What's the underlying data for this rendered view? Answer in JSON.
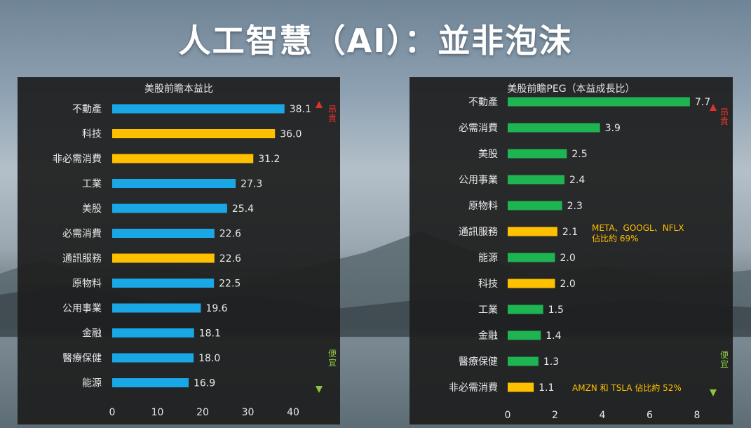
{
  "title": "人工智慧（AI）：並非泡沫",
  "colors": {
    "blue": "#1aa7e6",
    "gold": "#ffc000",
    "green": "#1db451",
    "arrow_top": "#e0322c",
    "arrow_bottom": "#8cc63f"
  },
  "chart_data": [
    {
      "type": "bar",
      "orientation": "horizontal",
      "title": "美股前瞻本益比",
      "categories": [
        "不動產",
        "科技",
        "非必需消費",
        "工業",
        "美股",
        "必需消費",
        "通訊服務",
        "原物料",
        "公用事業",
        "金融",
        "醫療保健",
        "能源"
      ],
      "values": [
        38.1,
        36.0,
        31.2,
        27.3,
        25.4,
        22.6,
        22.6,
        22.5,
        19.6,
        18.1,
        18.0,
        16.9
      ],
      "value_labels": [
        "38.1",
        "36.0",
        "31.2",
        "27.3",
        "25.4",
        "22.6",
        "22.6",
        "22.5",
        "19.6",
        "18.1",
        "18.0",
        "16.9"
      ],
      "highlight": [
        false,
        true,
        true,
        false,
        false,
        false,
        true,
        false,
        false,
        false,
        false,
        false
      ],
      "xlim": [
        0,
        40
      ],
      "xticks": [
        "0",
        "10",
        "20",
        "30",
        "40"
      ],
      "grid": false,
      "arrow_labels": {
        "top": "昂貴",
        "bottom": "便宜"
      }
    },
    {
      "type": "bar",
      "orientation": "horizontal",
      "title": "美股前瞻PEG（本益成長比）",
      "categories": [
        "不動產",
        "必需消費",
        "美股",
        "公用事業",
        "原物料",
        "通訊服務",
        "能源",
        "科技",
        "工業",
        "金融",
        "醫療保健",
        "非必需消費"
      ],
      "values": [
        7.7,
        3.9,
        2.5,
        2.4,
        2.3,
        2.1,
        2.0,
        2.0,
        1.5,
        1.4,
        1.3,
        1.1
      ],
      "value_labels": [
        "7.7",
        "3.9",
        "2.5",
        "2.4",
        "2.3",
        "2.1",
        "2.0",
        "2.0",
        "1.5",
        "1.4",
        "1.3",
        "1.1"
      ],
      "highlight": [
        false,
        false,
        false,
        false,
        false,
        true,
        false,
        true,
        false,
        false,
        false,
        true
      ],
      "xlim": [
        0,
        8
      ],
      "xticks": [
        "0",
        "2",
        "4",
        "6",
        "8"
      ],
      "grid": false,
      "arrow_labels": {
        "top": "昂貴",
        "bottom": "便宜"
      },
      "annotations": [
        {
          "category": "通訊服務",
          "lines": [
            "META、GOOGL、NFLX",
            "佔比約 69%"
          ]
        },
        {
          "category": "非必需消費",
          "lines": [
            "AMZN 和 TSLA 佔比約 52%"
          ]
        }
      ]
    }
  ]
}
